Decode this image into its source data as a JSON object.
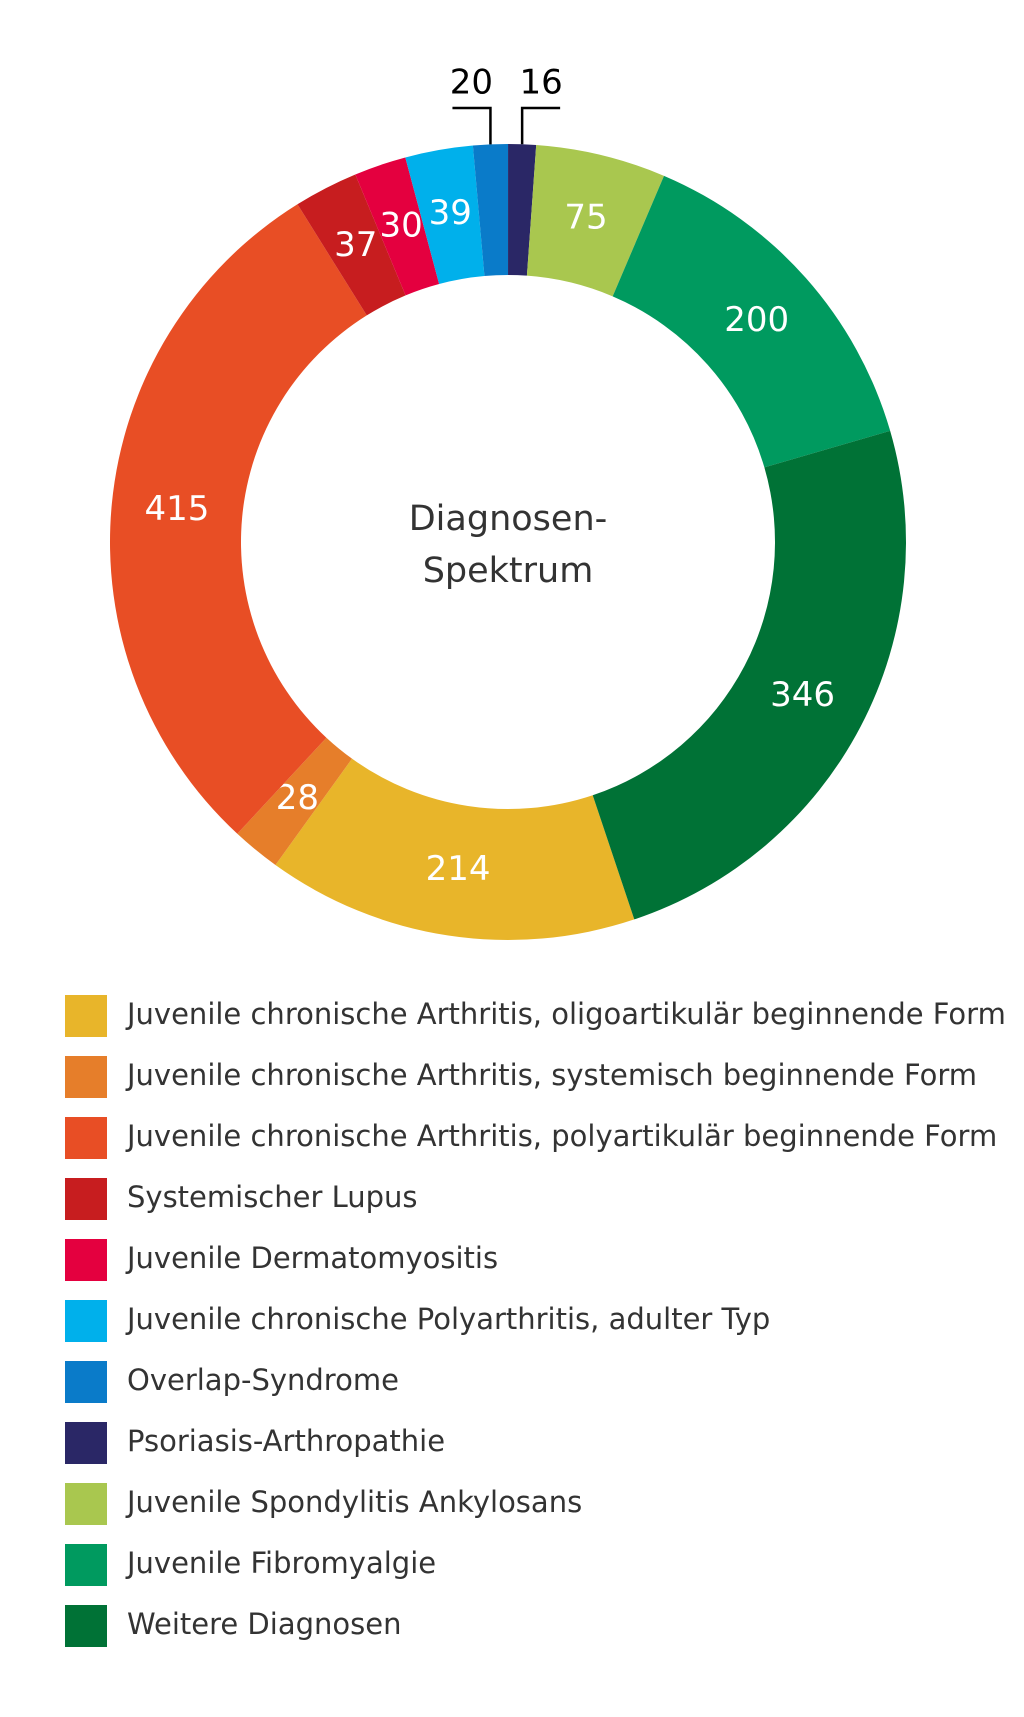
{
  "chart_data": {
    "type": "donut",
    "center_text": [
      "Diagnosen-",
      "Spektrum"
    ],
    "categories": [
      "Juvenile chronische Arthritis, oligoartikulär beginnende Form",
      "Juvenile chronische Arthritis, systemisch beginnende Form",
      "Juvenile chronische Arthritis, polyartikulär beginnende Form",
      "Systemischer Lupus",
      "Juvenile Dermatomyositis",
      "Juvenile chronische Polyarthritis, adulter Typ",
      "Overlap-Syndrome",
      "Psoriasis-Arthropathie",
      "Juvenile Spondylitis Ankylosans",
      "Juvenile Fibromyalgie",
      "Weitere Diagnosen"
    ],
    "values": [
      214,
      28,
      415,
      37,
      30,
      39,
      20,
      16,
      75,
      200,
      346
    ],
    "colors": [
      "#e8b52a",
      "#e67e2a",
      "#e84e25",
      "#c71d1f",
      "#e4003f",
      "#00b0eb",
      "#0a7bc9",
      "#2a2766",
      "#a9c74f",
      "#009a5f",
      "#007236"
    ]
  }
}
